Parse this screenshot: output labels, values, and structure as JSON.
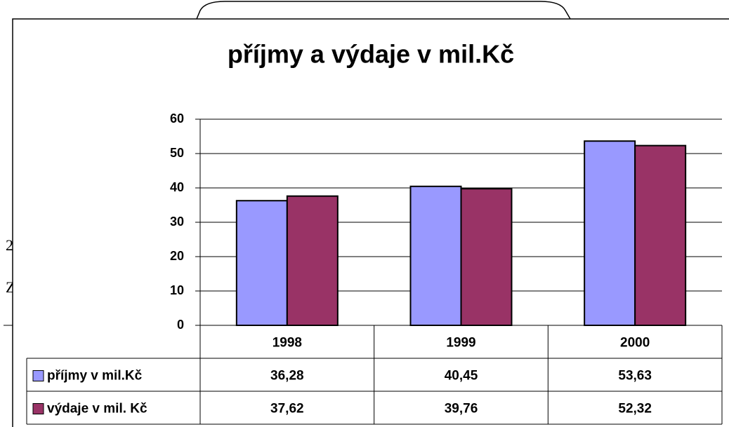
{
  "chart_data": {
    "type": "bar",
    "title": "příjmy a výdaje v mil.Kč",
    "categories": [
      "1998",
      "1999",
      "2000"
    ],
    "series": [
      {
        "name": "příjmy v mil.Kč",
        "color": "#9999ff",
        "values": [
          36.28,
          40.45,
          53.63
        ],
        "value_labels": [
          "36,28",
          "40,45",
          "53,63"
        ]
      },
      {
        "name": "výdaje v mil. Kč",
        "color": "#993366",
        "values": [
          37.62,
          39.76,
          52.32
        ],
        "value_labels": [
          "37,62",
          "39,76",
          "52,32"
        ]
      }
    ],
    "ylim": [
      0,
      60
    ],
    "yticks": [
      0,
      10,
      20,
      30,
      40,
      50,
      60
    ],
    "grid": true,
    "legend": "table"
  },
  "background_text": [
    "2",
    "Z"
  ]
}
